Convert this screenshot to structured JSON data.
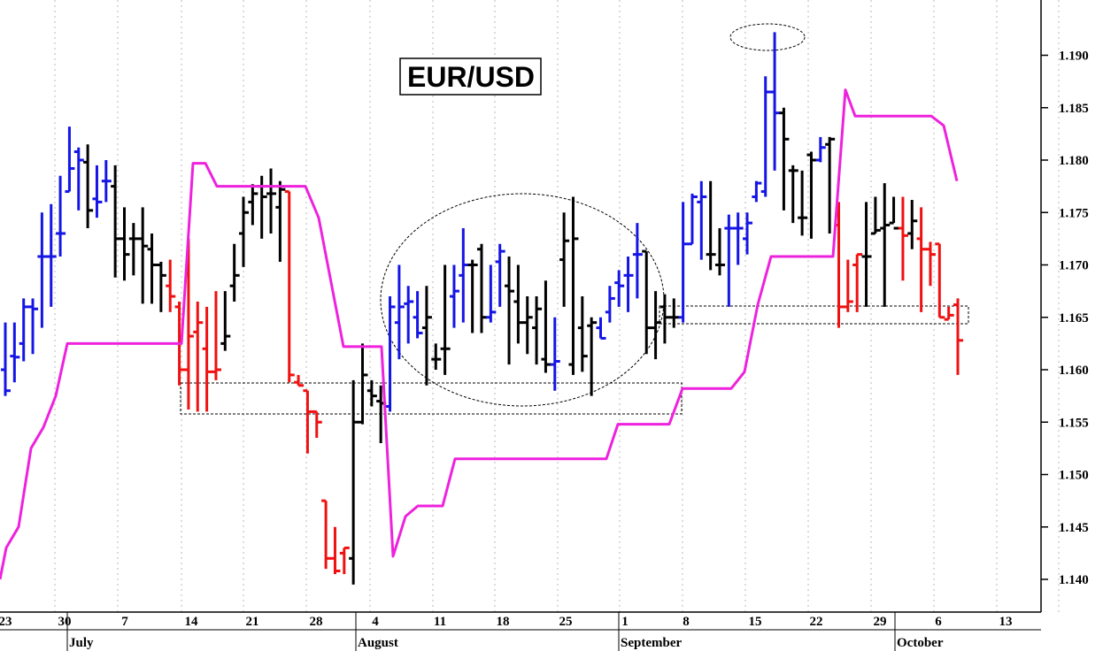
{
  "chart_data": {
    "type": "bar",
    "subtype": "ohlc",
    "title": "EUR/USD",
    "y_ticks": [
      "1.140",
      "1.145",
      "1.150",
      "1.155",
      "1.160",
      "1.165",
      "1.170",
      "1.175",
      "1.180",
      "1.185",
      "1.190"
    ],
    "ylim": [
      1.1355,
      1.1955
    ],
    "x_ticks": [
      "23",
      "30",
      "7",
      "14",
      "21",
      "28",
      "4",
      "11",
      "18",
      "25",
      "1",
      "8",
      "15",
      "22",
      "29",
      "6",
      "13"
    ],
    "months": [
      "July",
      "August",
      "September",
      "October"
    ],
    "grid": "vertical dotted",
    "colors": {
      "up_trend": "#1515e6",
      "down_trend": "#f01010",
      "neutral": "#000000",
      "stop_line": "#ee22dd"
    },
    "ohlc": [
      {
        "o": 1.16,
        "h": 1.1645,
        "l": 1.1575,
        "c": 1.158,
        "col": "blue"
      },
      {
        "o": 1.1613,
        "h": 1.1645,
        "l": 1.1588,
        "c": 1.1612,
        "col": "blue"
      },
      {
        "o": 1.1625,
        "h": 1.1668,
        "l": 1.1608,
        "c": 1.166,
        "col": "blue"
      },
      {
        "o": 1.166,
        "h": 1.1668,
        "l": 1.1615,
        "c": 1.1658,
        "col": "blue"
      },
      {
        "o": 1.1708,
        "h": 1.175,
        "l": 1.164,
        "c": 1.1708,
        "col": "blue"
      },
      {
        "o": 1.1708,
        "h": 1.1758,
        "l": 1.166,
        "c": 1.1708,
        "col": "blue"
      },
      {
        "o": 1.173,
        "h": 1.1785,
        "l": 1.1708,
        "c": 1.173,
        "col": "blue"
      },
      {
        "o": 1.177,
        "h": 1.1832,
        "l": 1.177,
        "c": 1.1792,
        "col": "blue"
      },
      {
        "o": 1.1808,
        "h": 1.1812,
        "l": 1.1752,
        "c": 1.18,
        "col": "blue"
      },
      {
        "o": 1.1798,
        "h": 1.1815,
        "l": 1.1735,
        "c": 1.1752,
        "col": "black"
      },
      {
        "o": 1.1763,
        "h": 1.1795,
        "l": 1.1745,
        "c": 1.176,
        "col": "blue"
      },
      {
        "o": 1.178,
        "h": 1.18,
        "l": 1.176,
        "c": 1.178,
        "col": "blue"
      },
      {
        "o": 1.1775,
        "h": 1.1795,
        "l": 1.1688,
        "c": 1.1725,
        "col": "black"
      },
      {
        "o": 1.1725,
        "h": 1.1755,
        "l": 1.1685,
        "c": 1.171,
        "col": "black"
      },
      {
        "o": 1.1725,
        "h": 1.174,
        "l": 1.169,
        "c": 1.1725,
        "col": "black"
      },
      {
        "o": 1.1725,
        "h": 1.1755,
        "l": 1.1663,
        "c": 1.1718,
        "col": "black"
      },
      {
        "o": 1.1715,
        "h": 1.173,
        "l": 1.1663,
        "c": 1.17,
        "col": "black"
      },
      {
        "o": 1.17,
        "h": 1.1703,
        "l": 1.1655,
        "c": 1.169,
        "col": "black"
      },
      {
        "o": 1.168,
        "h": 1.1705,
        "l": 1.1655,
        "c": 1.167,
        "col": "red"
      },
      {
        "o": 1.166,
        "h": 1.1665,
        "l": 1.1585,
        "c": 1.16,
        "col": "red"
      },
      {
        "o": 1.16,
        "h": 1.1725,
        "l": 1.1562,
        "c": 1.1632,
        "col": "red"
      },
      {
        "o": 1.1636,
        "h": 1.1665,
        "l": 1.156,
        "c": 1.1645,
        "col": "red"
      },
      {
        "o": 1.162,
        "h": 1.166,
        "l": 1.156,
        "c": 1.1598,
        "col": "red"
      },
      {
        "o": 1.1598,
        "h": 1.1675,
        "l": 1.159,
        "c": 1.16,
        "col": "red"
      },
      {
        "o": 1.1625,
        "h": 1.1675,
        "l": 1.1618,
        "c": 1.1632,
        "col": "black"
      },
      {
        "o": 1.168,
        "h": 1.172,
        "l": 1.1665,
        "c": 1.169,
        "col": "black"
      },
      {
        "o": 1.173,
        "h": 1.1765,
        "l": 1.1698,
        "c": 1.175,
        "col": "black"
      },
      {
        "o": 1.176,
        "h": 1.1777,
        "l": 1.1738,
        "c": 1.1768,
        "col": "black"
      },
      {
        "o": 1.1775,
        "h": 1.1785,
        "l": 1.1725,
        "c": 1.1765,
        "col": "black"
      },
      {
        "o": 1.1768,
        "h": 1.1792,
        "l": 1.173,
        "c": 1.1768,
        "col": "black"
      },
      {
        "o": 1.1755,
        "h": 1.178,
        "l": 1.1703,
        "c": 1.1772,
        "col": "black"
      },
      {
        "o": 1.177,
        "h": 1.177,
        "l": 1.1588,
        "c": 1.1595,
        "col": "red"
      },
      {
        "o": 1.1588,
        "h": 1.1595,
        "l": 1.1585,
        "c": 1.1585,
        "col": "red"
      },
      {
        "o": 1.158,
        "h": 1.158,
        "l": 1.152,
        "c": 1.156,
        "col": "red"
      },
      {
        "o": 1.156,
        "h": 1.156,
        "l": 1.1535,
        "c": 1.155,
        "col": "red"
      },
      {
        "o": 1.1475,
        "h": 1.1475,
        "l": 1.141,
        "c": 1.142,
        "col": "red"
      },
      {
        "o": 1.142,
        "h": 1.145,
        "l": 1.1405,
        "c": 1.1408,
        "col": "red"
      },
      {
        "o": 1.1425,
        "h": 1.143,
        "l": 1.1405,
        "c": 1.143,
        "col": "red"
      },
      {
        "o": 1.142,
        "h": 1.159,
        "l": 1.1395,
        "c": 1.155,
        "col": "black"
      },
      {
        "o": 1.155,
        "h": 1.1625,
        "l": 1.1548,
        "c": 1.1595,
        "col": "black"
      },
      {
        "o": 1.158,
        "h": 1.159,
        "l": 1.1565,
        "c": 1.1575,
        "col": "black"
      },
      {
        "o": 1.157,
        "h": 1.1585,
        "l": 1.153,
        "c": 1.1568,
        "col": "black"
      },
      {
        "o": 1.1565,
        "h": 1.167,
        "l": 1.156,
        "c": 1.166,
        "col": "blue"
      },
      {
        "o": 1.1645,
        "h": 1.17,
        "l": 1.161,
        "c": 1.166,
        "col": "blue"
      },
      {
        "o": 1.1663,
        "h": 1.168,
        "l": 1.1625,
        "c": 1.1665,
        "col": "blue"
      },
      {
        "o": 1.165,
        "h": 1.1675,
        "l": 1.163,
        "c": 1.1635,
        "col": "blue"
      },
      {
        "o": 1.164,
        "h": 1.168,
        "l": 1.1585,
        "c": 1.165,
        "col": "black"
      },
      {
        "o": 1.161,
        "h": 1.1625,
        "l": 1.16,
        "c": 1.161,
        "col": "black"
      },
      {
        "o": 1.162,
        "h": 1.17,
        "l": 1.1595,
        "c": 1.162,
        "col": "black"
      },
      {
        "o": 1.167,
        "h": 1.17,
        "l": 1.164,
        "c": 1.1675,
        "col": "blue"
      },
      {
        "o": 1.169,
        "h": 1.1735,
        "l": 1.1645,
        "c": 1.17,
        "col": "blue"
      },
      {
        "o": 1.17,
        "h": 1.1705,
        "l": 1.1635,
        "c": 1.17,
        "col": "black"
      },
      {
        "o": 1.1715,
        "h": 1.172,
        "l": 1.1635,
        "c": 1.165,
        "col": "black"
      },
      {
        "o": 1.165,
        "h": 1.17,
        "l": 1.1645,
        "c": 1.1655,
        "col": "blue"
      },
      {
        "o": 1.1703,
        "h": 1.172,
        "l": 1.166,
        "c": 1.1713,
        "col": "blue"
      },
      {
        "o": 1.168,
        "h": 1.1708,
        "l": 1.1605,
        "c": 1.1675,
        "col": "black"
      },
      {
        "o": 1.1665,
        "h": 1.17,
        "l": 1.1625,
        "c": 1.1645,
        "col": "black"
      },
      {
        "o": 1.1645,
        "h": 1.167,
        "l": 1.1615,
        "c": 1.165,
        "col": "black"
      },
      {
        "o": 1.164,
        "h": 1.167,
        "l": 1.1605,
        "c": 1.1658,
        "col": "black"
      },
      {
        "o": 1.161,
        "h": 1.1685,
        "l": 1.1597,
        "c": 1.1605,
        "col": "black"
      },
      {
        "o": 1.1605,
        "h": 1.165,
        "l": 1.158,
        "c": 1.1608,
        "col": "blue"
      },
      {
        "o": 1.1705,
        "h": 1.175,
        "l": 1.166,
        "c": 1.1723,
        "col": "black"
      },
      {
        "o": 1.1605,
        "h": 1.1765,
        "l": 1.1595,
        "c": 1.1725,
        "col": "black"
      },
      {
        "o": 1.164,
        "h": 1.167,
        "l": 1.1598,
        "c": 1.1613,
        "col": "black"
      },
      {
        "o": 1.1642,
        "h": 1.165,
        "l": 1.1575,
        "c": 1.1645,
        "col": "black"
      },
      {
        "o": 1.164,
        "h": 1.165,
        "l": 1.163,
        "c": 1.163,
        "col": "blue"
      },
      {
        "o": 1.1655,
        "h": 1.168,
        "l": 1.1645,
        "c": 1.1668,
        "col": "blue"
      },
      {
        "o": 1.1683,
        "h": 1.1695,
        "l": 1.166,
        "c": 1.168,
        "col": "blue"
      },
      {
        "o": 1.169,
        "h": 1.1708,
        "l": 1.1655,
        "c": 1.169,
        "col": "blue"
      },
      {
        "o": 1.171,
        "h": 1.174,
        "l": 1.1668,
        "c": 1.171,
        "col": "blue"
      },
      {
        "o": 1.1713,
        "h": 1.1713,
        "l": 1.1615,
        "c": 1.164,
        "col": "black"
      },
      {
        "o": 1.164,
        "h": 1.1675,
        "l": 1.161,
        "c": 1.1645,
        "col": "black"
      },
      {
        "o": 1.166,
        "h": 1.1672,
        "l": 1.1625,
        "c": 1.165,
        "col": "black"
      },
      {
        "o": 1.165,
        "h": 1.1668,
        "l": 1.164,
        "c": 1.165,
        "col": "black"
      },
      {
        "o": 1.165,
        "h": 1.176,
        "l": 1.1645,
        "c": 1.172,
        "col": "blue"
      },
      {
        "o": 1.172,
        "h": 1.1768,
        "l": 1.172,
        "c": 1.1765,
        "col": "blue"
      },
      {
        "o": 1.176,
        "h": 1.178,
        "l": 1.1705,
        "c": 1.1765,
        "col": "blue"
      },
      {
        "o": 1.171,
        "h": 1.178,
        "l": 1.1695,
        "c": 1.171,
        "col": "black"
      },
      {
        "o": 1.17,
        "h": 1.1735,
        "l": 1.169,
        "c": 1.17,
        "col": "black"
      },
      {
        "o": 1.1735,
        "h": 1.1748,
        "l": 1.166,
        "c": 1.1735,
        "col": "blue"
      },
      {
        "o": 1.1735,
        "h": 1.175,
        "l": 1.17,
        "c": 1.1735,
        "col": "blue"
      },
      {
        "o": 1.1725,
        "h": 1.175,
        "l": 1.171,
        "c": 1.174,
        "col": "blue"
      },
      {
        "o": 1.1765,
        "h": 1.178,
        "l": 1.176,
        "c": 1.1778,
        "col": "blue"
      },
      {
        "o": 1.177,
        "h": 1.188,
        "l": 1.1765,
        "c": 1.1865,
        "col": "blue"
      },
      {
        "o": 1.1865,
        "h": 1.1922,
        "l": 1.179,
        "c": 1.1845,
        "col": "blue"
      },
      {
        "o": 1.1845,
        "h": 1.185,
        "l": 1.1752,
        "c": 1.182,
        "col": "black"
      },
      {
        "o": 1.179,
        "h": 1.1795,
        "l": 1.174,
        "c": 1.179,
        "col": "black"
      },
      {
        "o": 1.1745,
        "h": 1.179,
        "l": 1.1728,
        "c": 1.1745,
        "col": "black"
      },
      {
        "o": 1.1805,
        "h": 1.1808,
        "l": 1.1725,
        "c": 1.18,
        "col": "black"
      },
      {
        "o": 1.18,
        "h": 1.1822,
        "l": 1.1798,
        "c": 1.1812,
        "col": "blue"
      },
      {
        "o": 1.1815,
        "h": 1.1822,
        "l": 1.173,
        "c": 1.182,
        "col": "black"
      },
      {
        "o": 1.1738,
        "h": 1.176,
        "l": 1.164,
        "c": 1.166,
        "col": "red"
      },
      {
        "o": 1.166,
        "h": 1.1705,
        "l": 1.1655,
        "c": 1.1665,
        "col": "red"
      },
      {
        "o": 1.17,
        "h": 1.171,
        "l": 1.1655,
        "c": 1.171,
        "col": "red"
      },
      {
        "o": 1.1708,
        "h": 1.176,
        "l": 1.166,
        "c": 1.1708,
        "col": "black"
      },
      {
        "o": 1.173,
        "h": 1.1765,
        "l": 1.173,
        "c": 1.1733,
        "col": "black"
      },
      {
        "o": 1.1735,
        "h": 1.1778,
        "l": 1.166,
        "c": 1.1738,
        "col": "black"
      },
      {
        "o": 1.174,
        "h": 1.1765,
        "l": 1.174,
        "c": 1.1735,
        "col": "black"
      },
      {
        "o": 1.1735,
        "h": 1.1765,
        "l": 1.1685,
        "c": 1.1728,
        "col": "red"
      },
      {
        "o": 1.173,
        "h": 1.1762,
        "l": 1.1715,
        "c": 1.1742,
        "col": "black"
      },
      {
        "o": 1.1725,
        "h": 1.1755,
        "l": 1.1655,
        "c": 1.1715,
        "col": "red"
      },
      {
        "o": 1.1715,
        "h": 1.1722,
        "l": 1.168,
        "c": 1.171,
        "col": "red"
      },
      {
        "o": 1.172,
        "h": 1.172,
        "l": 1.165,
        "c": 1.165,
        "col": "red"
      },
      {
        "o": 1.1648,
        "h": 1.166,
        "l": 1.1648,
        "c": 1.1652,
        "col": "red"
      },
      {
        "o": 1.1662,
        "h": 1.1668,
        "l": 1.1595,
        "c": 1.1628,
        "col": "red"
      }
    ],
    "stop_line": [
      [
        0,
        1.14
      ],
      [
        7,
        1.143
      ],
      [
        21,
        1.145
      ],
      [
        35,
        1.1525
      ],
      [
        49,
        1.1545
      ],
      [
        63,
        1.1575
      ],
      [
        76,
        1.1625
      ],
      [
        205,
        1.1625
      ],
      [
        218,
        1.1797
      ],
      [
        232,
        1.1797
      ],
      [
        245,
        1.1775
      ],
      [
        345,
        1.1775
      ],
      [
        360,
        1.1745
      ],
      [
        388,
        1.1622
      ],
      [
        431,
        1.1622
      ],
      [
        444,
        1.1422
      ],
      [
        458,
        1.146
      ],
      [
        472,
        1.147
      ],
      [
        500,
        1.147
      ],
      [
        514,
        1.1515
      ],
      [
        685,
        1.1515
      ],
      [
        698,
        1.1548
      ],
      [
        756,
        1.1548
      ],
      [
        771,
        1.1582
      ],
      [
        826,
        1.1582
      ],
      [
        841,
        1.1598
      ],
      [
        856,
        1.1662
      ],
      [
        871,
        1.1708
      ],
      [
        941,
        1.1708
      ],
      [
        955,
        1.1867
      ],
      [
        966,
        1.1842
      ],
      [
        1052,
        1.1842
      ],
      [
        1066,
        1.1833
      ],
      [
        1081,
        1.178
      ]
    ]
  }
}
